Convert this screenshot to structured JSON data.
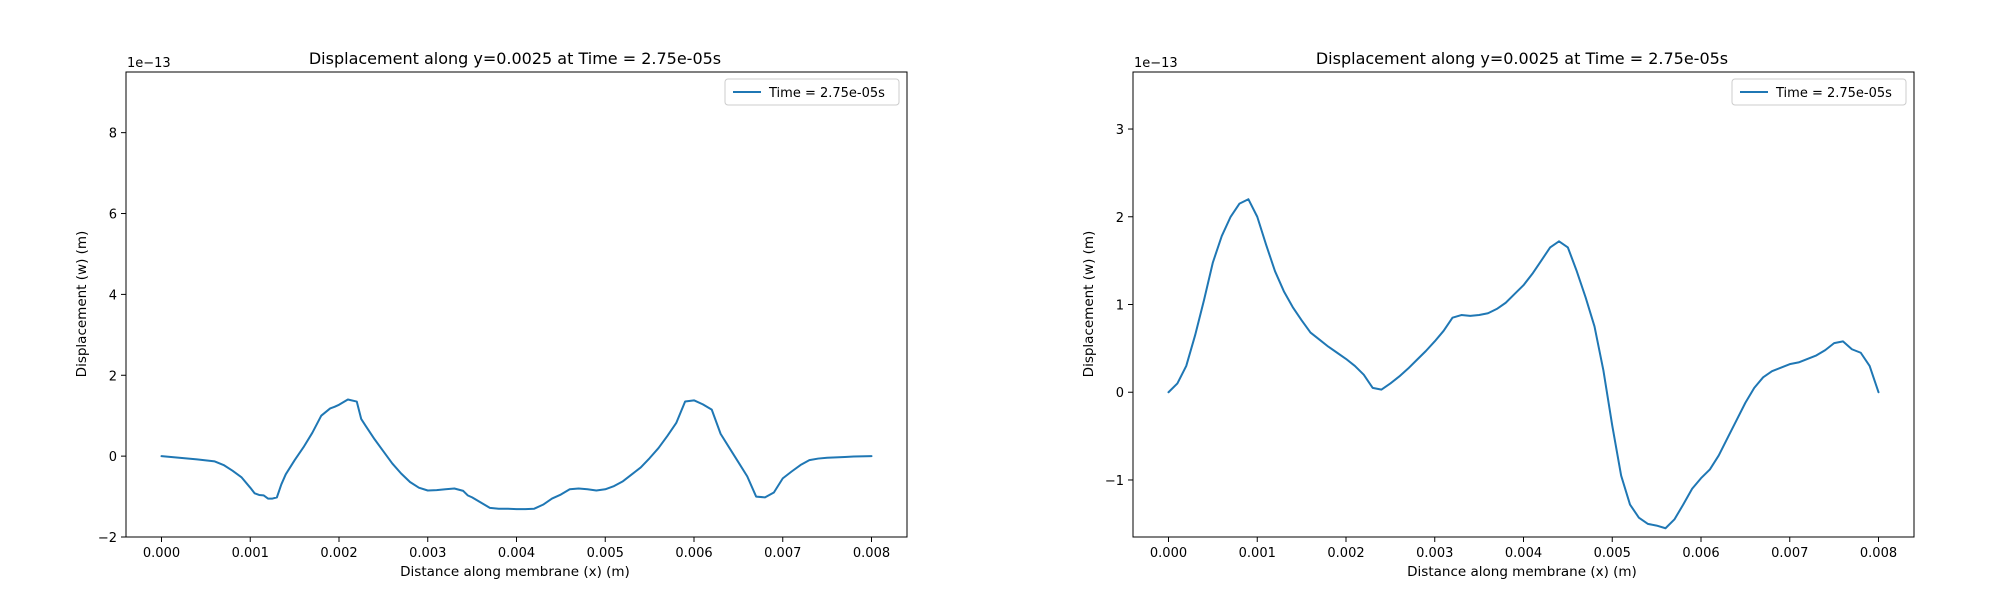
{
  "chart_data": [
    {
      "type": "line",
      "title": "Displacement along y=0.0025 at Time = 2.75e-05s",
      "xlabel": "Distance along membrane (x) (m)",
      "ylabel": "Displacement (w) (m)",
      "offset_text": "1e−13",
      "xlim": [
        -0.0004,
        0.0084
      ],
      "ylim": [
        -2,
        9.5
      ],
      "xticks": [
        0,
        0.001,
        0.002,
        0.003,
        0.004,
        0.005,
        0.006,
        0.007,
        0.008
      ],
      "xtick_labels": [
        "0.000",
        "0.001",
        "0.002",
        "0.003",
        "0.004",
        "0.005",
        "0.006",
        "0.007",
        "0.008"
      ],
      "yticks": [
        -2,
        0,
        2,
        4,
        6,
        8
      ],
      "ytick_labels": [
        "−2",
        "0",
        "2",
        "4",
        "6",
        "8"
      ],
      "legend_position": "upper right",
      "grid": false,
      "series": [
        {
          "name": "Time = 2.75e-05s",
          "color": "#1f77b4",
          "x": [
            0,
            0.0002,
            0.0004,
            0.0006,
            0.0007,
            0.0008,
            0.0009,
            0.001,
            0.00105,
            0.0011,
            0.00115,
            0.0012,
            0.00125,
            0.0013,
            0.00135,
            0.0014,
            0.0015,
            0.0016,
            0.0017,
            0.0018,
            0.0019,
            0.00195,
            0.002,
            0.0021,
            0.0022,
            0.00225,
            0.0023,
            0.0024,
            0.0025,
            0.0026,
            0.0027,
            0.0028,
            0.0029,
            0.003,
            0.0031,
            0.0032,
            0.0033,
            0.0034,
            0.00345,
            0.0035,
            0.0036,
            0.0037,
            0.0038,
            0.0039,
            0.004,
            0.0041,
            0.0042,
            0.0043,
            0.0044,
            0.0045,
            0.0046,
            0.0047,
            0.0048,
            0.0049,
            0.005,
            0.0051,
            0.0052,
            0.0053,
            0.0054,
            0.0055,
            0.0056,
            0.0057,
            0.0058,
            0.0059,
            0.006,
            0.0061,
            0.0062,
            0.0063,
            0.0064,
            0.0065,
            0.0066,
            0.0067,
            0.0068,
            0.0069,
            0.007,
            0.0071,
            0.0072,
            0.0073,
            0.0074,
            0.0075,
            0.0076,
            0.0077,
            0.0078,
            0.008
          ],
          "y": [
            0,
            -0.04,
            -0.08,
            -0.13,
            -0.22,
            -0.36,
            -0.52,
            -0.78,
            -0.92,
            -0.96,
            -0.97,
            -1.05,
            -1.05,
            -1.02,
            -0.7,
            -0.45,
            -0.1,
            0.22,
            0.58,
            1.0,
            1.18,
            1.22,
            1.27,
            1.4,
            1.35,
            0.92,
            0.75,
            0.42,
            0.12,
            -0.18,
            -0.43,
            -0.64,
            -0.78,
            -0.85,
            -0.84,
            -0.82,
            -0.8,
            -0.86,
            -0.97,
            -1.02,
            -1.15,
            -1.28,
            -1.3,
            -1.3,
            -1.31,
            -1.31,
            -1.3,
            -1.2,
            -1.05,
            -0.95,
            -0.82,
            -0.8,
            -0.82,
            -0.85,
            -0.82,
            -0.74,
            -0.62,
            -0.45,
            -0.28,
            -0.05,
            0.2,
            0.5,
            0.82,
            1.35,
            1.38,
            1.28,
            1.15,
            0.55,
            0.2,
            -0.15,
            -0.5,
            -1.0,
            -1.02,
            -0.9,
            -0.55,
            -0.38,
            -0.22,
            -0.1,
            -0.06,
            -0.04,
            -0.03,
            -0.02,
            -0.01,
            0
          ]
        }
      ]
    },
    {
      "type": "line",
      "title": "Displacement along y=0.0025 at Time = 2.75e-05s",
      "xlabel": "Distance along membrane (x) (m)",
      "ylabel": "Displacement (w) (m)",
      "offset_text": "1e−13",
      "xlim": [
        -0.0004,
        0.0084
      ],
      "ylim": [
        -1.65,
        3.65
      ],
      "xticks": [
        0,
        0.001,
        0.002,
        0.003,
        0.004,
        0.005,
        0.006,
        0.007,
        0.008
      ],
      "xtick_labels": [
        "0.000",
        "0.001",
        "0.002",
        "0.003",
        "0.004",
        "0.005",
        "0.006",
        "0.007",
        "0.008"
      ],
      "yticks": [
        -1,
        0,
        1,
        2,
        3
      ],
      "ytick_labels": [
        "−1",
        "0",
        "1",
        "2",
        "3"
      ],
      "legend_position": "upper right",
      "grid": false,
      "series": [
        {
          "name": "Time = 2.75e-05s",
          "color": "#1f77b4",
          "x": [
            0,
            0.0001,
            0.0002,
            0.0003,
            0.0004,
            0.0005,
            0.0006,
            0.0007,
            0.0008,
            0.0009,
            0.001,
            0.0011,
            0.0012,
            0.0013,
            0.0014,
            0.0015,
            0.0016,
            0.0017,
            0.0018,
            0.0019,
            0.002,
            0.0021,
            0.0022,
            0.0023,
            0.0024,
            0.0025,
            0.0026,
            0.0027,
            0.0028,
            0.0029,
            0.003,
            0.0031,
            0.0032,
            0.0033,
            0.0034,
            0.0035,
            0.0036,
            0.0037,
            0.0038,
            0.0039,
            0.004,
            0.0041,
            0.0042,
            0.0043,
            0.0044,
            0.0045,
            0.0046,
            0.0047,
            0.0048,
            0.0049,
            0.005,
            0.0051,
            0.0052,
            0.0053,
            0.0054,
            0.0055,
            0.0056,
            0.0057,
            0.0058,
            0.0059,
            0.006,
            0.0061,
            0.0062,
            0.0063,
            0.0064,
            0.0065,
            0.0066,
            0.0067,
            0.0068,
            0.0069,
            0.007,
            0.0071,
            0.0072,
            0.0073,
            0.0074,
            0.0075,
            0.0076,
            0.0077,
            0.0078,
            0.0079,
            0.008
          ],
          "y": [
            0,
            0.1,
            0.3,
            0.65,
            1.05,
            1.48,
            1.78,
            2.0,
            2.15,
            2.2,
            2.0,
            1.68,
            1.38,
            1.15,
            0.97,
            0.82,
            0.68,
            0.6,
            0.52,
            0.45,
            0.38,
            0.3,
            0.2,
            0.05,
            0.03,
            0.1,
            0.18,
            0.27,
            0.37,
            0.47,
            0.58,
            0.7,
            0.85,
            0.88,
            0.87,
            0.88,
            0.9,
            0.95,
            1.02,
            1.12,
            1.22,
            1.35,
            1.5,
            1.65,
            1.72,
            1.65,
            1.38,
            1.08,
            0.75,
            0.25,
            -0.38,
            -0.95,
            -1.28,
            -1.43,
            -1.5,
            -1.52,
            -1.55,
            -1.45,
            -1.28,
            -1.1,
            -0.98,
            -0.88,
            -0.72,
            -0.52,
            -0.32,
            -0.12,
            0.05,
            0.17,
            0.24,
            0.28,
            0.32,
            0.34,
            0.38,
            0.42,
            0.48,
            0.56,
            0.58,
            0.49,
            0.45,
            0.3,
            0.0
          ]
        }
      ]
    }
  ]
}
